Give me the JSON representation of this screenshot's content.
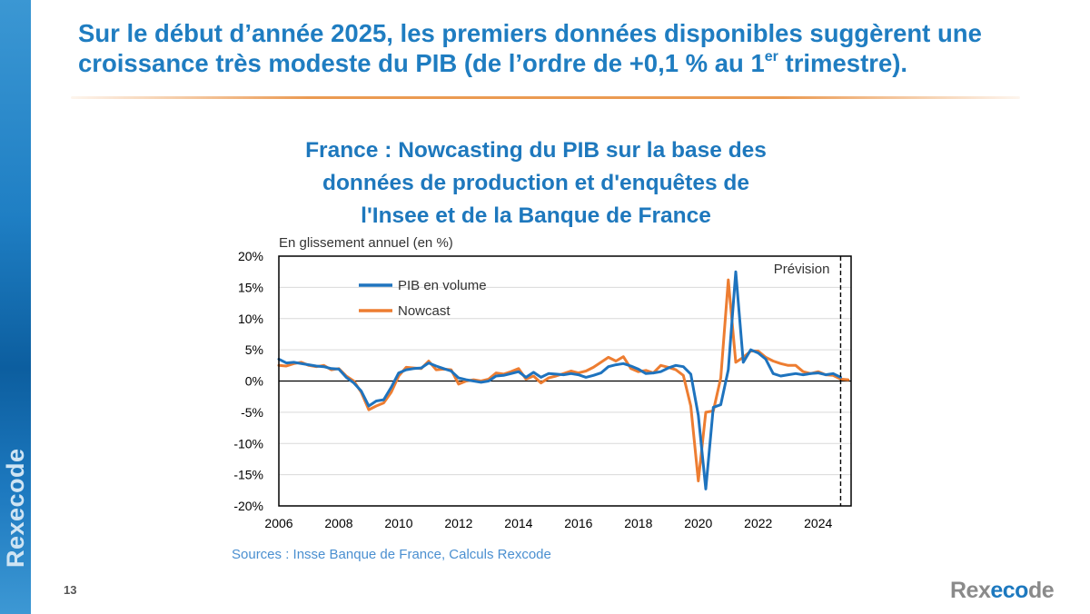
{
  "slide": {
    "headline": "Sur le début d’année 2025, les premiers données disponibles suggèrent une croissance très modeste du PIB (de l’ordre de +0,1 % au 1",
    "headline_sup": "er",
    "headline_end": " trimestre).",
    "page_number": "13",
    "sidebar_brand": "Rexecode",
    "logo": {
      "part1": "Rex",
      "part2": "eco",
      "part3": "de"
    },
    "colors": {
      "accent_blue": "#1f7dc1",
      "rule_orange": "#eb9a52"
    }
  },
  "chart_data": {
    "type": "line",
    "title": "France : Nowcasting du PIB sur la base des données de production et d'enquêtes de l'Insee et de la Banque de France",
    "title_lines": [
      "France : Nowcasting du PIB sur la base des",
      "données de production et d'enquêtes de",
      "l'Insee et de la Banque de France"
    ],
    "subtitle": "En glissement annuel (en %)",
    "source": "Sources : Insse Banque de France, Calculs Rexcode",
    "annotation": "Prévision",
    "forecast_start": 2024.75,
    "xlabel": "",
    "ylabel": "",
    "xlim": [
      2006,
      2025.1
    ],
    "ylim": [
      -20,
      20
    ],
    "x_ticks": [
      2006,
      2008,
      2010,
      2012,
      2014,
      2016,
      2018,
      2020,
      2022,
      2024
    ],
    "x_tick_labels": [
      "2006",
      "2008",
      "2010",
      "2012",
      "2014",
      "2016",
      "2018",
      "2020",
      "2022",
      "2024"
    ],
    "y_ticks": [
      20,
      15,
      10,
      5,
      0,
      -5,
      -10,
      -15,
      -20
    ],
    "y_tick_labels": [
      "20%",
      "15%",
      "10%",
      "5%",
      "0%",
      "-5%",
      "-10%",
      "-15%",
      "-20%"
    ],
    "legend_position": "top-left",
    "series": [
      {
        "name": "PIB en volume",
        "color": "#1e73be",
        "x": [
          2006.0,
          2006.25,
          2006.5,
          2006.75,
          2007.0,
          2007.25,
          2007.5,
          2007.75,
          2008.0,
          2008.25,
          2008.5,
          2008.75,
          2009.0,
          2009.25,
          2009.5,
          2009.75,
          2010.0,
          2010.25,
          2010.5,
          2010.75,
          2011.0,
          2011.25,
          2011.5,
          2011.75,
          2012.0,
          2012.25,
          2012.5,
          2012.75,
          2013.0,
          2013.25,
          2013.5,
          2013.75,
          2014.0,
          2014.25,
          2014.5,
          2014.75,
          2015.0,
          2015.25,
          2015.5,
          2015.75,
          2016.0,
          2016.25,
          2016.5,
          2016.75,
          2017.0,
          2017.25,
          2017.5,
          2017.75,
          2018.0,
          2018.25,
          2018.5,
          2018.75,
          2019.0,
          2019.25,
          2019.5,
          2019.75,
          2020.0,
          2020.25,
          2020.5,
          2020.75,
          2021.0,
          2021.25,
          2021.5,
          2021.75,
          2022.0,
          2022.25,
          2022.5,
          2022.75,
          2023.0,
          2023.25,
          2023.5,
          2023.75,
          2024.0,
          2024.25,
          2024.5,
          2024.75
        ],
        "values": [
          3.5,
          2.9,
          3.0,
          2.8,
          2.6,
          2.4,
          2.3,
          2.0,
          1.9,
          0.6,
          -0.3,
          -1.6,
          -4.0,
          -3.2,
          -3.0,
          -1.0,
          1.3,
          1.8,
          2.0,
          2.1,
          2.9,
          2.4,
          2.0,
          1.6,
          0.5,
          0.2,
          0.0,
          -0.2,
          0.0,
          0.8,
          0.9,
          1.2,
          1.5,
          0.6,
          1.4,
          0.6,
          1.2,
          1.1,
          1.0,
          1.2,
          1.0,
          0.6,
          0.9,
          1.3,
          2.3,
          2.6,
          2.8,
          2.4,
          1.9,
          1.2,
          1.3,
          1.5,
          2.1,
          2.5,
          2.3,
          1.1,
          -5.5,
          -17.3,
          -4.2,
          -3.8,
          1.8,
          17.5,
          3.0,
          5.0,
          4.5,
          3.5,
          1.2,
          0.8,
          1.0,
          1.2,
          1.0,
          1.2,
          1.3,
          1.0,
          1.2,
          0.6
        ]
      },
      {
        "name": "Nowcast",
        "color": "#ed7d31",
        "x": [
          2006.0,
          2006.25,
          2006.5,
          2006.75,
          2007.0,
          2007.25,
          2007.5,
          2007.75,
          2008.0,
          2008.25,
          2008.5,
          2008.75,
          2009.0,
          2009.25,
          2009.5,
          2009.75,
          2010.0,
          2010.25,
          2010.5,
          2010.75,
          2011.0,
          2011.25,
          2011.5,
          2011.75,
          2012.0,
          2012.25,
          2012.5,
          2012.75,
          2013.0,
          2013.25,
          2013.5,
          2013.75,
          2014.0,
          2014.25,
          2014.5,
          2014.75,
          2015.0,
          2015.25,
          2015.5,
          2015.75,
          2016.0,
          2016.25,
          2016.5,
          2016.75,
          2017.0,
          2017.25,
          2017.5,
          2017.75,
          2018.0,
          2018.25,
          2018.5,
          2018.75,
          2019.0,
          2019.25,
          2019.5,
          2019.75,
          2020.0,
          2020.25,
          2020.5,
          2020.75,
          2021.0,
          2021.25,
          2021.5,
          2021.75,
          2022.0,
          2022.25,
          2022.5,
          2022.75,
          2023.0,
          2023.25,
          2023.5,
          2023.75,
          2024.0,
          2024.25,
          2024.5,
          2024.75,
          2025.0
        ],
        "values": [
          2.5,
          2.4,
          2.8,
          3.0,
          2.5,
          2.3,
          2.5,
          1.8,
          2.0,
          0.8,
          0.0,
          -1.8,
          -4.6,
          -4.0,
          -3.5,
          -1.8,
          0.8,
          2.2,
          2.1,
          2.0,
          3.2,
          1.8,
          1.9,
          1.8,
          -0.5,
          0.0,
          0.2,
          0.0,
          0.3,
          1.3,
          1.1,
          1.5,
          2.0,
          0.3,
          0.8,
          -0.3,
          0.5,
          0.8,
          1.2,
          1.6,
          1.3,
          1.6,
          2.2,
          3.0,
          3.8,
          3.2,
          3.9,
          2.0,
          1.5,
          1.7,
          1.3,
          2.5,
          2.2,
          1.8,
          0.9,
          -4.0,
          -16.0,
          -5.0,
          -4.8,
          0.5,
          16.2,
          3.0,
          3.8,
          4.8,
          4.8,
          3.8,
          3.2,
          2.8,
          2.5,
          2.5,
          1.5,
          1.2,
          1.5,
          1.0,
          0.9,
          0.3,
          0.2
        ]
      }
    ]
  }
}
